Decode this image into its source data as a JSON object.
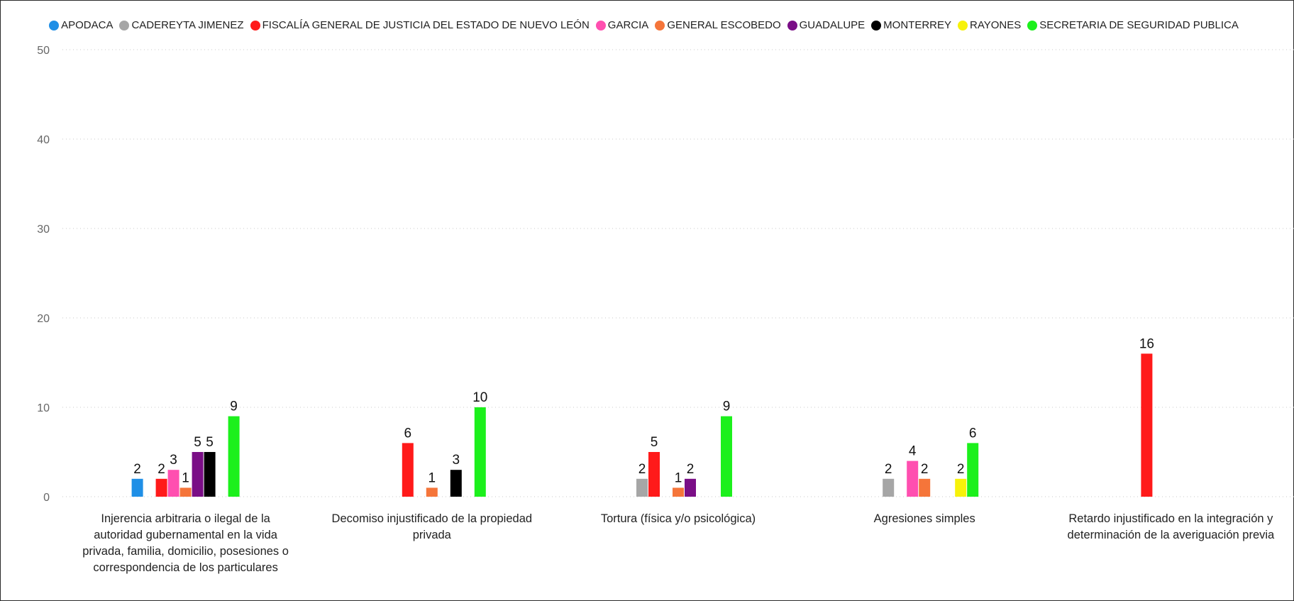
{
  "chart_data": {
    "type": "bar",
    "legend_position": "top-center",
    "grid": true,
    "ylim": [
      0,
      50
    ],
    "yticks": [
      "0",
      "10",
      "20",
      "30",
      "40",
      "50"
    ],
    "categories": [
      "Injerencia arbitraria o ilegal de la autoridad gubernamental en la vida privada, familia, domicilio, posesiones o correspondencia de los particulares",
      "Decomiso injustificado de la propiedad privada",
      "Tortura (física y/o psicológica)",
      "Agresiones simples",
      "Retardo injustificado en la integración y determinación de la averiguación previa"
    ],
    "series": [
      {
        "name": "APODACA",
        "color": "#1f8fe6",
        "values": [
          2,
          null,
          null,
          null,
          null
        ]
      },
      {
        "name": "CADEREYTA JIMENEZ",
        "color": "#a6a6a6",
        "values": [
          null,
          null,
          2,
          2,
          null
        ]
      },
      {
        "name": "FISCALÍA GENERAL DE JUSTICIA DEL ESTADO DE NUEVO LEÓN",
        "color": "#ff1a1a",
        "values": [
          2,
          6,
          5,
          null,
          16
        ]
      },
      {
        "name": "GARCIA",
        "color": "#ff4fb0",
        "values": [
          3,
          null,
          null,
          4,
          null
        ]
      },
      {
        "name": "GENERAL ESCOBEDO",
        "color": "#f5753a",
        "values": [
          1,
          1,
          1,
          2,
          null
        ]
      },
      {
        "name": "GUADALUPE",
        "color": "#7a0e86",
        "values": [
          5,
          null,
          2,
          null,
          null
        ]
      },
      {
        "name": "MONTERREY",
        "color": "#000000",
        "values": [
          5,
          3,
          null,
          null,
          null
        ]
      },
      {
        "name": "RAYONES",
        "color": "#f7f20a",
        "values": [
          null,
          null,
          null,
          2,
          null
        ]
      },
      {
        "name": "SECRETARIA DE SEGURIDAD PUBLICA",
        "color": "#1cf01c",
        "values": [
          9,
          10,
          9,
          6,
          null
        ]
      }
    ]
  }
}
